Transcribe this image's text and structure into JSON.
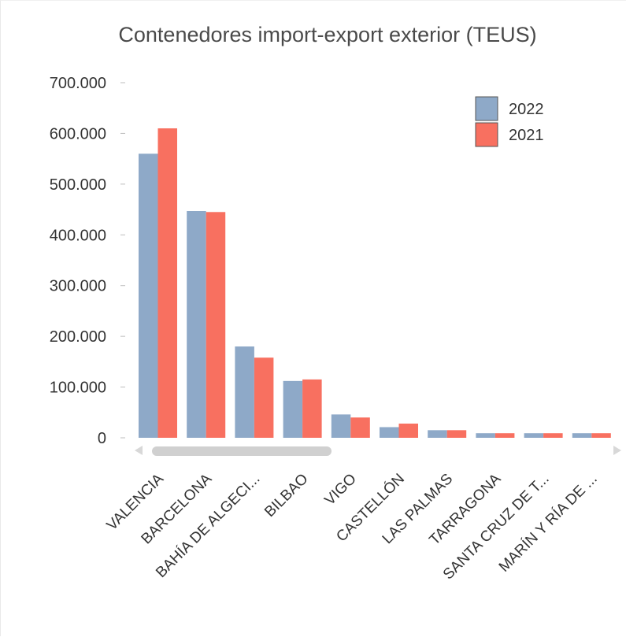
{
  "chart_data": {
    "type": "bar",
    "title": "Contenedores import-export exterior (TEUS)",
    "xlabel": "",
    "ylabel": "",
    "ylim": [
      0,
      700000
    ],
    "yticks": [
      "0",
      "100.000",
      "200.000",
      "300.000",
      "400.000",
      "500.000",
      "600.000",
      "700.000"
    ],
    "ytick_values": [
      0,
      100000,
      200000,
      300000,
      400000,
      500000,
      600000,
      700000
    ],
    "categories": [
      "VALENCIA",
      "BARCELONA",
      "BAHÍA DE ALGECI...",
      "BILBAO",
      "VIGO",
      "CASTELLÓN",
      "LAS PALMAS",
      "TARRAGONA",
      "SANTA CRUZ DE T...",
      "MARÍN Y RÍA DE ..."
    ],
    "series": [
      {
        "name": "2022",
        "color": "#8ea9c8",
        "values": [
          560000,
          447000,
          180000,
          112000,
          46000,
          21000,
          15000,
          9000,
          9000,
          9000
        ]
      },
      {
        "name": "2021",
        "color": "#f87060",
        "values": [
          610000,
          445000,
          158000,
          115000,
          40000,
          28000,
          15000,
          9000,
          9000,
          9000
        ]
      }
    ],
    "grid": false,
    "legend_position": "top-right",
    "horizontal_scrollbar": true
  }
}
